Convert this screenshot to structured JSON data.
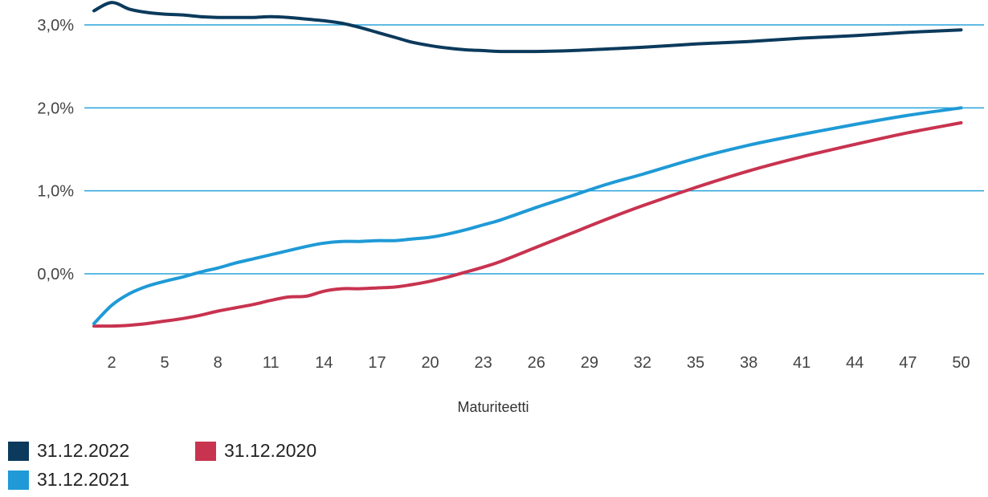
{
  "chart_data": {
    "type": "line",
    "xlabel": "Maturiteetti",
    "ylabel": "",
    "x_ticks": [
      2,
      5,
      8,
      11,
      14,
      17,
      20,
      23,
      26,
      29,
      32,
      35,
      38,
      41,
      44,
      47,
      50
    ],
    "y_ticks": [
      {
        "value": 0.0,
        "label": "0,0%"
      },
      {
        "value": 1.0,
        "label": "1,0%"
      },
      {
        "value": 2.0,
        "label": "2,0%"
      },
      {
        "value": 3.0,
        "label": "3,0%"
      }
    ],
    "xlim": [
      1,
      50
    ],
    "ylim": [
      -0.7,
      3.3
    ],
    "grid": "horizontal",
    "legend_position": "bottom-left",
    "series": [
      {
        "name": "31.12.2022",
        "color": "#0b3a5c",
        "x": [
          1,
          2,
          3,
          4,
          5,
          6,
          7,
          8,
          9,
          10,
          11,
          12,
          13,
          14,
          15,
          16,
          17,
          18,
          19,
          20,
          21,
          22,
          23,
          24,
          26,
          28,
          30,
          32,
          35,
          38,
          41,
          44,
          47,
          50
        ],
        "y": [
          3.17,
          3.27,
          3.19,
          3.15,
          3.13,
          3.12,
          3.1,
          3.09,
          3.09,
          3.09,
          3.1,
          3.09,
          3.07,
          3.05,
          3.02,
          2.97,
          2.91,
          2.85,
          2.79,
          2.75,
          2.72,
          2.7,
          2.69,
          2.68,
          2.68,
          2.69,
          2.71,
          2.73,
          2.77,
          2.8,
          2.84,
          2.87,
          2.91,
          2.94
        ]
      },
      {
        "name": "31.12.2020",
        "color": "#c8334f",
        "x": [
          1,
          2,
          3,
          4,
          5,
          6,
          7,
          8,
          9,
          10,
          11,
          12,
          13,
          14,
          15,
          16,
          17,
          18,
          19,
          20,
          21,
          22,
          23,
          24,
          26,
          28,
          30,
          32,
          35,
          38,
          41,
          44,
          47,
          50
        ],
        "y": [
          -0.63,
          -0.63,
          -0.62,
          -0.6,
          -0.57,
          -0.54,
          -0.5,
          -0.45,
          -0.41,
          -0.37,
          -0.32,
          -0.28,
          -0.27,
          -0.21,
          -0.18,
          -0.18,
          -0.17,
          -0.16,
          -0.13,
          -0.09,
          -0.04,
          0.02,
          0.08,
          0.15,
          0.32,
          0.49,
          0.66,
          0.82,
          1.04,
          1.24,
          1.41,
          1.56,
          1.7,
          1.82
        ]
      },
      {
        "name": "31.12.2021",
        "color": "#1f9ad6",
        "x": [
          1,
          2,
          3,
          4,
          5,
          6,
          7,
          8,
          9,
          10,
          11,
          12,
          13,
          14,
          15,
          16,
          17,
          18,
          19,
          20,
          21,
          22,
          23,
          24,
          26,
          28,
          30,
          32,
          35,
          38,
          41,
          44,
          47,
          50
        ],
        "y": [
          -0.6,
          -0.38,
          -0.24,
          -0.15,
          -0.09,
          -0.04,
          0.02,
          0.07,
          0.13,
          0.18,
          0.23,
          0.28,
          0.33,
          0.37,
          0.39,
          0.39,
          0.4,
          0.4,
          0.42,
          0.44,
          0.48,
          0.53,
          0.59,
          0.65,
          0.8,
          0.94,
          1.08,
          1.2,
          1.39,
          1.55,
          1.68,
          1.8,
          1.91,
          2.0
        ]
      }
    ]
  },
  "legend": {
    "items": [
      {
        "label": "31.12.2022",
        "color": "#0b3a5c"
      },
      {
        "label": "31.12.2020",
        "color": "#c8334f"
      },
      {
        "label": "31.12.2021",
        "color": "#1f9ad6"
      }
    ]
  }
}
